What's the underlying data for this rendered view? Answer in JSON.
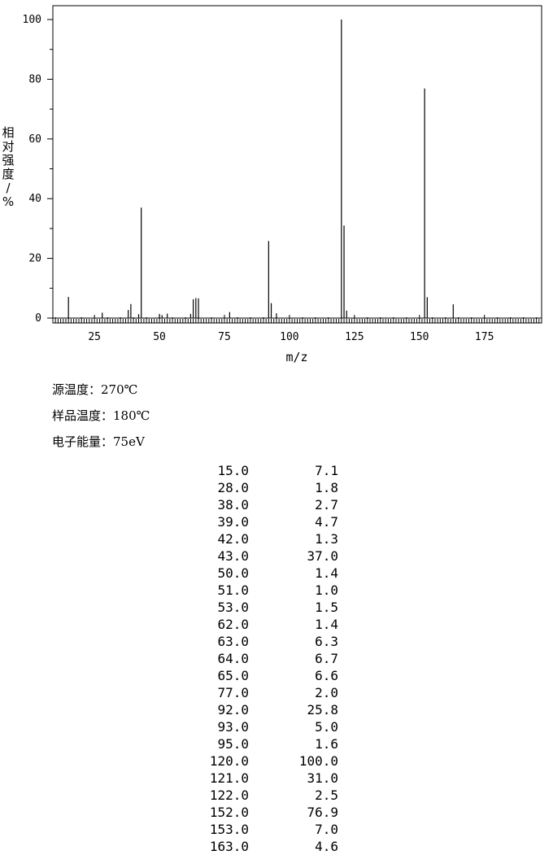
{
  "chart_data": {
    "type": "bar",
    "xlabel": "m/z",
    "ylabel": "相对强度/%",
    "xlim": [
      9,
      197
    ],
    "ylim": [
      0,
      104
    ],
    "xticks": [
      25,
      50,
      75,
      100,
      125,
      150,
      175
    ],
    "yticks": [
      0,
      20,
      40,
      60,
      80,
      100
    ],
    "x": [
      15,
      28,
      38,
      39,
      42,
      43,
      50,
      51,
      53,
      62,
      63,
      64,
      65,
      77,
      92,
      93,
      95,
      120,
      121,
      122,
      152,
      153,
      163
    ],
    "values": [
      7.1,
      1.8,
      2.7,
      4.7,
      1.3,
      37.0,
      1.4,
      1.0,
      1.5,
      1.4,
      6.3,
      6.7,
      6.6,
      2.0,
      25.8,
      5.0,
      1.6,
      100.0,
      31.0,
      2.5,
      76.9,
      7.0,
      4.6
    ]
  },
  "info": {
    "source_temp_label": "源温度：",
    "source_temp_value": "270℃",
    "sample_temp_label": "样品温度：",
    "sample_temp_value": "180℃",
    "electron_energy_label": "电子能量：",
    "electron_energy_value": "75eV"
  },
  "peak_table": [
    {
      "mz": "15.0",
      "ab": "7.1"
    },
    {
      "mz": "28.0",
      "ab": "1.8"
    },
    {
      "mz": "38.0",
      "ab": "2.7"
    },
    {
      "mz": "39.0",
      "ab": "4.7"
    },
    {
      "mz": "42.0",
      "ab": "1.3"
    },
    {
      "mz": "43.0",
      "ab": "37.0"
    },
    {
      "mz": "50.0",
      "ab": "1.4"
    },
    {
      "mz": "51.0",
      "ab": "1.0"
    },
    {
      "mz": "53.0",
      "ab": "1.5"
    },
    {
      "mz": "62.0",
      "ab": "1.4"
    },
    {
      "mz": "63.0",
      "ab": "6.3"
    },
    {
      "mz": "64.0",
      "ab": "6.7"
    },
    {
      "mz": "65.0",
      "ab": "6.6"
    },
    {
      "mz": "77.0",
      "ab": "2.0"
    },
    {
      "mz": "92.0",
      "ab": "25.8"
    },
    {
      "mz": "93.0",
      "ab": "5.0"
    },
    {
      "mz": "95.0",
      "ab": "1.6"
    },
    {
      "mz": "120.0",
      "ab": "100.0"
    },
    {
      "mz": "121.0",
      "ab": "31.0"
    },
    {
      "mz": "122.0",
      "ab": "2.5"
    },
    {
      "mz": "152.0",
      "ab": "76.9"
    },
    {
      "mz": "153.0",
      "ab": "7.0"
    },
    {
      "mz": "163.0",
      "ab": "4.6"
    }
  ]
}
